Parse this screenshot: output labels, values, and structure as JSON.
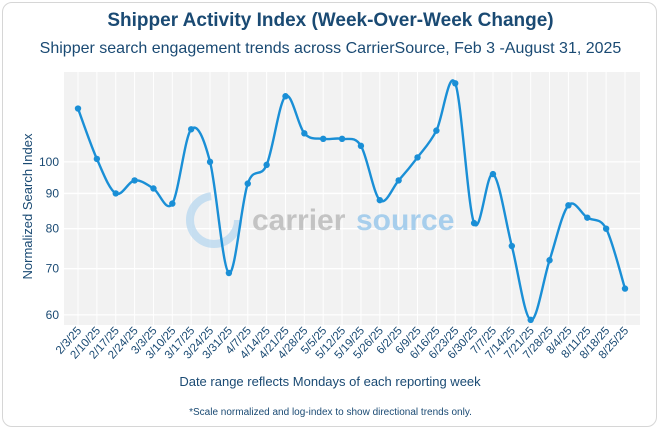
{
  "chart_data": {
    "type": "line",
    "title": "Shipper Activity Index (Week-Over-Week Change)",
    "subtitle": "Shipper search engagement trends across CarrierSource, Feb 3 -August 31, 2025",
    "xlabel": "Date range reflects Mondays of each reporting week",
    "ylabel": "Normalized Search Index",
    "footnote": "*Scale normalized and log-index to show directional trends only.",
    "watermark": "carriersource",
    "yscale": "log",
    "ylim": [
      58,
      135
    ],
    "yticks": [
      60,
      70,
      80,
      90,
      100
    ],
    "grid": true,
    "colors": {
      "line": "#1a8fd6",
      "plot_bg": "#f2f2f2",
      "text": "#1a4a73"
    },
    "x": [
      "2/3/25",
      "2/10/25",
      "2/17/25",
      "2/24/25",
      "3/3/25",
      "3/10/25",
      "3/17/25",
      "3/24/25",
      "3/31/25",
      "4/7/25",
      "4/14/25",
      "4/21/25",
      "4/28/25",
      "5/5/25",
      "5/12/25",
      "5/19/25",
      "5/26/25",
      "6/2/25",
      "6/9/25",
      "6/16/25",
      "6/23/25",
      "6/30/25",
      "7/7/25",
      "7/14/25",
      "7/21/25",
      "7/28/25",
      "8/4/25",
      "8/11/25",
      "8/18/25",
      "8/25/25"
    ],
    "series": [
      {
        "values": [
          119.5,
          101,
          90,
          94,
          91.5,
          87,
          111.5,
          100,
          69,
          93,
          99,
          124.5,
          110,
          108,
          108,
          105.5,
          88,
          94,
          101.5,
          111,
          130,
          81.5,
          96,
          75.5,
          59,
          72,
          86.5,
          83,
          80,
          65.5
        ]
      }
    ]
  }
}
